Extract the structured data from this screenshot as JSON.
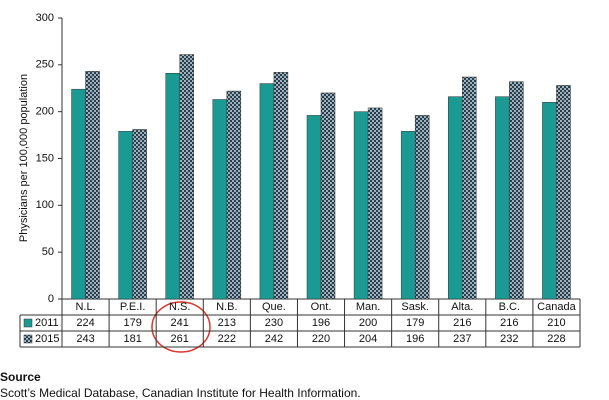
{
  "chart_data": {
    "type": "bar",
    "y_label": "Physicians per 100,000 population",
    "categories": [
      "N.L.",
      "P.E.I.",
      "N.S.",
      "N.B.",
      "Que.",
      "Ont.",
      "Man.",
      "Sask.",
      "Alta.",
      "B.C.",
      "Canada"
    ],
    "series": [
      {
        "name": "2011",
        "color": "#1a9a92",
        "values": [
          224,
          179,
          241,
          213,
          230,
          196,
          200,
          179,
          216,
          216,
          210
        ]
      },
      {
        "name": "2015",
        "color": "#233f52",
        "pattern": "dots",
        "values": [
          243,
          181,
          261,
          222,
          242,
          220,
          204,
          196,
          237,
          232,
          228
        ]
      }
    ],
    "ylim": [
      0,
      300
    ],
    "yticks": [
      0,
      50,
      100,
      150,
      200,
      250,
      300
    ],
    "grid": false,
    "source_label": "Source",
    "source": "Scott’s Medical Database, Canadian Institute for Health Information."
  }
}
